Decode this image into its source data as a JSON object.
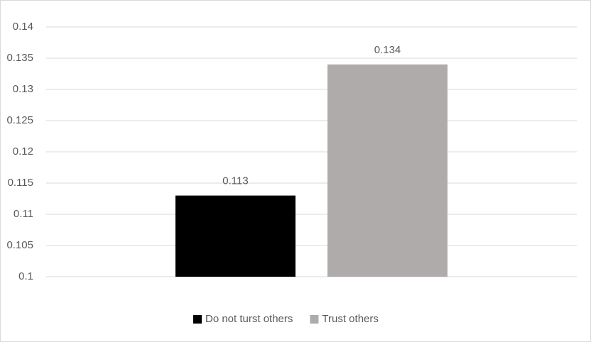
{
  "chart_data": {
    "type": "bar",
    "categories": [
      null
    ],
    "series": [
      {
        "name": "Do not turst others",
        "color": "#000000",
        "values": [
          0.113
        ]
      },
      {
        "name": "Trust others",
        "color": "#afabab",
        "values": [
          0.134
        ]
      }
    ],
    "ylim": [
      0.1,
      0.14
    ],
    "yticks": [
      0.1,
      0.105,
      0.11,
      0.115,
      0.12,
      0.125,
      0.13,
      0.135,
      0.14
    ],
    "grid": true,
    "data_labels": true,
    "legend": "bottom"
  }
}
